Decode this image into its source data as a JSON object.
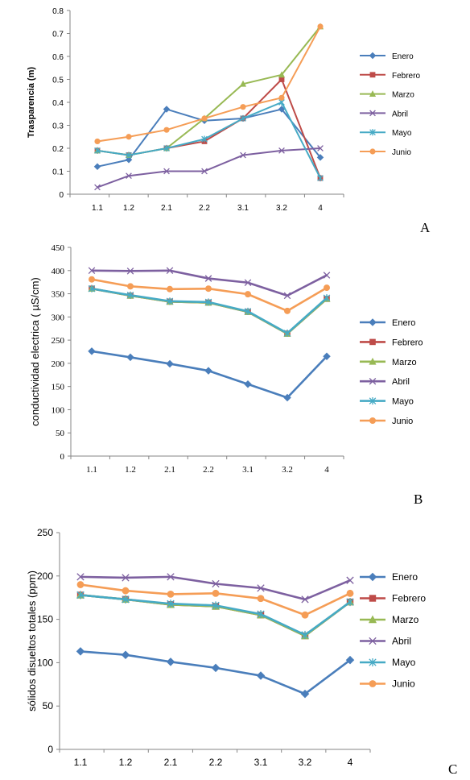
{
  "colors": {
    "Enero": "#4A7EBB",
    "Febrero": "#BE4B48",
    "Marzo": "#98B954",
    "Abril": "#7D60A0",
    "Mayo": "#46AAC5",
    "Junio": "#F59D56"
  },
  "markers": {
    "Enero": "diamond",
    "Febrero": "square",
    "Marzo": "triangle",
    "Abril": "x",
    "Mayo": "star",
    "Junio": "circle"
  },
  "chart_data": [
    {
      "type": "line",
      "panel_letter": "A",
      "ylabel": "Trasparencia (m)",
      "xlabel": "",
      "categories": [
        "1.1",
        "1.2",
        "2.1",
        "2.2",
        "3.1",
        "3.2",
        "4"
      ],
      "ylim": [
        0,
        0.8
      ],
      "yticks": [
        0,
        0.1,
        0.2,
        0.3,
        0.4,
        0.5,
        0.6,
        0.7,
        0.8
      ],
      "ytick_labels": [
        "0",
        "0.1",
        "0.2",
        "0.3",
        "0.4",
        "0.5",
        "0.6",
        "0.7",
        "0.8"
      ],
      "grid": false,
      "legend": "right",
      "series": [
        {
          "name": "Enero",
          "values": [
            0.12,
            0.15,
            0.37,
            0.32,
            0.33,
            0.37,
            0.16
          ]
        },
        {
          "name": "Febrero",
          "values": [
            0.19,
            0.17,
            0.2,
            0.23,
            0.33,
            0.5,
            0.07
          ]
        },
        {
          "name": "Marzo",
          "values": [
            0.19,
            0.17,
            0.2,
            0.33,
            0.48,
            0.52,
            0.73
          ]
        },
        {
          "name": "Abril",
          "values": [
            0.03,
            0.08,
            0.1,
            0.1,
            0.17,
            0.19,
            0.2
          ]
        },
        {
          "name": "Mayo",
          "values": [
            0.19,
            0.17,
            0.2,
            0.24,
            0.33,
            0.4,
            0.07
          ]
        },
        {
          "name": "Junio",
          "values": [
            0.23,
            0.25,
            0.28,
            0.33,
            0.38,
            0.42,
            0.73
          ]
        }
      ]
    },
    {
      "type": "line",
      "panel_letter": "B",
      "ylabel": "conductividad electrica ( µS/cm)",
      "xlabel": "",
      "categories": [
        "1.1",
        "1.2",
        "2.1",
        "2.2",
        "3.1",
        "3.2",
        "4"
      ],
      "ylim": [
        0,
        450
      ],
      "yticks": [
        0,
        50,
        100,
        150,
        200,
        250,
        300,
        350,
        400,
        450
      ],
      "ytick_labels": [
        "0",
        "50",
        "100",
        "150",
        "200",
        "250",
        "300",
        "350",
        "400",
        "450"
      ],
      "grid": false,
      "legend": "right",
      "series": [
        {
          "name": "Enero",
          "values": [
            226,
            213,
            199,
            184,
            155,
            126,
            215
          ]
        },
        {
          "name": "Febrero",
          "values": [
            361,
            346,
            333,
            331,
            311,
            264,
            339
          ]
        },
        {
          "name": "Marzo",
          "values": [
            361,
            346,
            333,
            331,
            311,
            264,
            339
          ]
        },
        {
          "name": "Abril",
          "values": [
            400,
            399,
            400,
            383,
            374,
            346,
            390
          ]
        },
        {
          "name": "Mayo",
          "values": [
            361,
            347,
            334,
            332,
            312,
            265,
            341
          ]
        },
        {
          "name": "Junio",
          "values": [
            381,
            366,
            360,
            361,
            349,
            313,
            363
          ]
        }
      ]
    },
    {
      "type": "line",
      "panel_letter": "C",
      "ylabel": "sólidos disueltos  totales (ppm)",
      "xlabel": "",
      "categories": [
        "1.1",
        "1.2",
        "2.1",
        "2.2",
        "3.1",
        "3.2",
        "4"
      ],
      "ylim": [
        0,
        250
      ],
      "yticks": [
        0,
        50,
        100,
        150,
        200,
        250
      ],
      "ytick_labels": [
        "0",
        "50",
        "100",
        "150",
        "200",
        "250"
      ],
      "grid": false,
      "legend": "right",
      "series": [
        {
          "name": "Enero",
          "values": [
            113,
            109,
            101,
            94,
            85,
            64,
            103
          ]
        },
        {
          "name": "Febrero",
          "values": [
            178,
            173,
            167,
            165,
            155,
            131,
            170
          ]
        },
        {
          "name": "Marzo",
          "values": [
            178,
            173,
            167,
            165,
            155,
            131,
            170
          ]
        },
        {
          "name": "Abril",
          "values": [
            199,
            198,
            199,
            191,
            186,
            173,
            195
          ]
        },
        {
          "name": "Mayo",
          "values": [
            178,
            173,
            168,
            166,
            156,
            132,
            170
          ]
        },
        {
          "name": "Junio",
          "values": [
            190,
            183,
            179,
            180,
            174,
            155,
            180
          ]
        }
      ]
    }
  ]
}
